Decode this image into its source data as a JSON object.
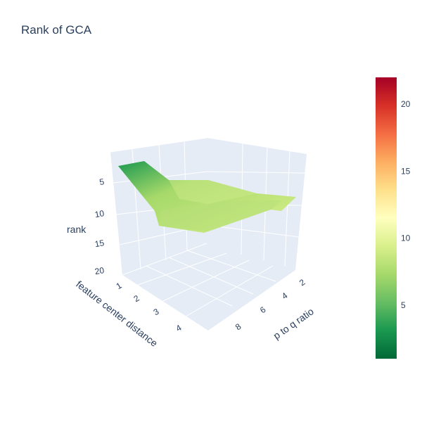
{
  "chart_data": {
    "type": "surface",
    "title": "Rank of GCA",
    "x_label": "p to q ratio",
    "y_label": "feature center distance",
    "z_label": "rank",
    "x_ticks": [
      2,
      4,
      6,
      8
    ],
    "y_ticks": [
      1,
      2,
      3,
      4
    ],
    "z_ticks": [
      5,
      10,
      15,
      20
    ],
    "z_reversed": true,
    "colorscale": "RdYlGn (reversed)",
    "color_range": [
      1,
      22
    ],
    "colorbar_ticks": [
      5,
      10,
      15,
      20
    ],
    "x": [
      1,
      2,
      4,
      8
    ],
    "y": [
      1,
      2,
      3,
      4
    ],
    "z": [
      [
        8,
        8,
        7,
        8
      ],
      [
        8,
        9,
        8,
        9
      ],
      [
        3,
        8,
        10,
        11
      ],
      [
        1,
        4,
        9,
        11
      ]
    ]
  }
}
